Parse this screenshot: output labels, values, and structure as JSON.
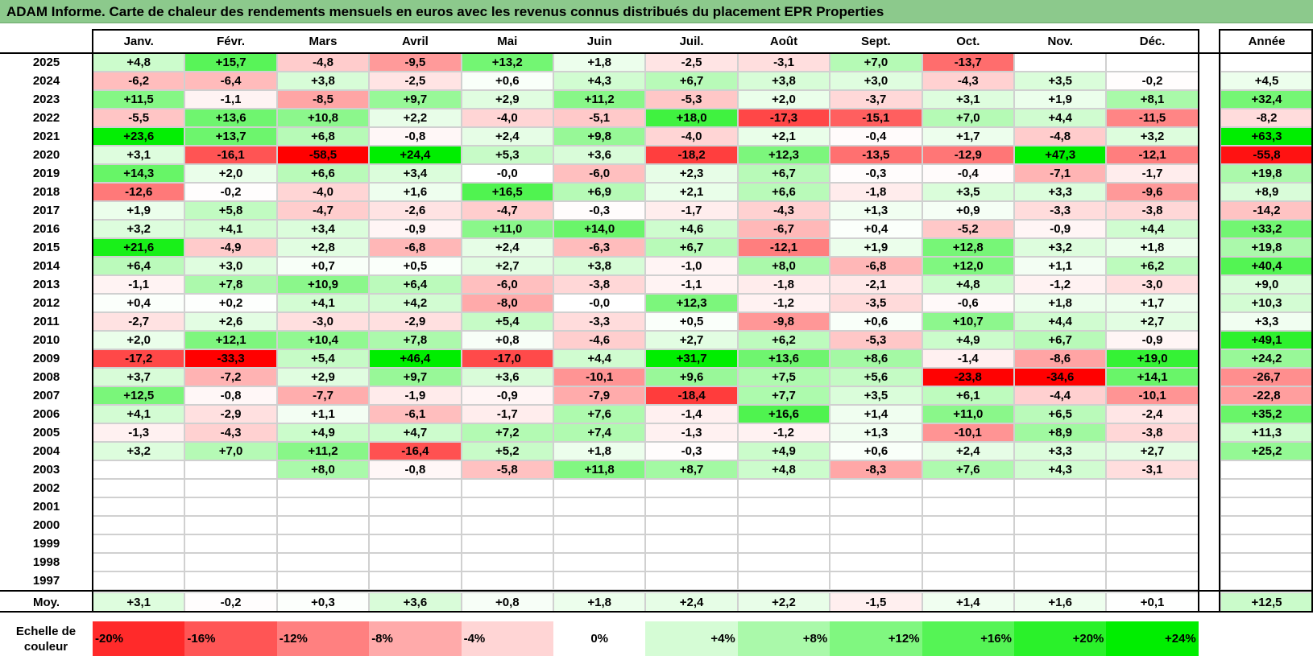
{
  "title": "ADAM Informe. Carte de chaleur des rendements mensuels en euros avec les revenus connus distribués du placement EPR Properties",
  "chart_data": {
    "type": "heatmap",
    "title": "ADAM Informe. Carte de chaleur des rendements mensuels en euros avec les revenus connus distribués du placement EPR Properties",
    "months": [
      "Janv.",
      "Févr.",
      "Mars",
      "Avril",
      "Mai",
      "Juin",
      "Juil.",
      "Août",
      "Sept.",
      "Oct.",
      "Nov.",
      "Déc."
    ],
    "year_header": "Année",
    "rows": [
      {
        "year": "2025",
        "values": [
          "+4,8",
          "+15,7",
          "-4,8",
          "-9,5",
          "+13,2",
          "+1,8",
          "-2,5",
          "-3,1",
          "+7,0",
          "-13,7",
          "",
          ""
        ],
        "annual": ""
      },
      {
        "year": "2024",
        "values": [
          "-6,2",
          "-6,4",
          "+3,8",
          "-2,5",
          "+0,6",
          "+4,3",
          "+6,7",
          "+3,8",
          "+3,0",
          "-4,3",
          "+3,5",
          "-0,2"
        ],
        "annual": "+4,5"
      },
      {
        "year": "2023",
        "values": [
          "+11,5",
          "-1,1",
          "-8,5",
          "+9,7",
          "+2,9",
          "+11,2",
          "-5,3",
          "+2,0",
          "-3,7",
          "+3,1",
          "+1,9",
          "+8,1"
        ],
        "annual": "+32,4"
      },
      {
        "year": "2022",
        "values": [
          "-5,5",
          "+13,6",
          "+10,8",
          "+2,2",
          "-4,0",
          "-5,1",
          "+18,0",
          "-17,3",
          "-15,1",
          "+7,0",
          "+4,4",
          "-11,5"
        ],
        "annual": "-8,2"
      },
      {
        "year": "2021",
        "values": [
          "+23,6",
          "+13,7",
          "+6,8",
          "-0,8",
          "+2,4",
          "+9,8",
          "-4,0",
          "+2,1",
          "-0,4",
          "+1,7",
          "-4,8",
          "+3,2"
        ],
        "annual": "+63,3"
      },
      {
        "year": "2020",
        "values": [
          "+3,1",
          "-16,1",
          "-58,5",
          "+24,4",
          "+5,3",
          "+3,6",
          "-18,2",
          "+12,3",
          "-13,5",
          "-12,9",
          "+47,3",
          "-12,1"
        ],
        "annual": "-55,8"
      },
      {
        "year": "2019",
        "values": [
          "+14,3",
          "+2,0",
          "+6,6",
          "+3,4",
          "-0,0",
          "-6,0",
          "+2,3",
          "+6,7",
          "-0,3",
          "-0,4",
          "-7,1",
          "-1,7"
        ],
        "annual": "+19,8"
      },
      {
        "year": "2018",
        "values": [
          "-12,6",
          "-0,2",
          "-4,0",
          "+1,6",
          "+16,5",
          "+6,9",
          "+2,1",
          "+6,6",
          "-1,8",
          "+3,5",
          "+3,3",
          "-9,6"
        ],
        "annual": "+8,9"
      },
      {
        "year": "2017",
        "values": [
          "+1,9",
          "+5,8",
          "-4,7",
          "-2,6",
          "-4,7",
          "-0,3",
          "-1,7",
          "-4,3",
          "+1,3",
          "+0,9",
          "-3,3",
          "-3,8"
        ],
        "annual": "-14,2"
      },
      {
        "year": "2016",
        "values": [
          "+3,2",
          "+4,1",
          "+3,4",
          "-0,9",
          "+11,0",
          "+14,0",
          "+4,6",
          "-6,7",
          "+0,4",
          "-5,2",
          "-0,9",
          "+4,4"
        ],
        "annual": "+33,2"
      },
      {
        "year": "2015",
        "values": [
          "+21,6",
          "-4,9",
          "+2,8",
          "-6,8",
          "+2,4",
          "-6,3",
          "+6,7",
          "-12,1",
          "+1,9",
          "+12,8",
          "+3,2",
          "+1,8"
        ],
        "annual": "+19,8"
      },
      {
        "year": "2014",
        "values": [
          "+6,4",
          "+3,0",
          "+0,7",
          "+0,5",
          "+2,7",
          "+3,8",
          "-1,0",
          "+8,0",
          "-6,8",
          "+12,0",
          "+1,1",
          "+6,2"
        ],
        "annual": "+40,4"
      },
      {
        "year": "2013",
        "values": [
          "-1,1",
          "+7,8",
          "+10,9",
          "+6,4",
          "-6,0",
          "-3,8",
          "-1,1",
          "-1,8",
          "-2,1",
          "+4,8",
          "-1,2",
          "-3,0"
        ],
        "annual": "+9,0"
      },
      {
        "year": "2012",
        "values": [
          "+0,4",
          "+0,2",
          "+4,1",
          "+4,2",
          "-8,0",
          "-0,0",
          "+12,3",
          "-1,2",
          "-3,5",
          "-0,6",
          "+1,8",
          "+1,7"
        ],
        "annual": "+10,3"
      },
      {
        "year": "2011",
        "values": [
          "-2,7",
          "+2,6",
          "-3,0",
          "-2,9",
          "+5,4",
          "-3,3",
          "+0,5",
          "-9,8",
          "+0,6",
          "+10,7",
          "+4,4",
          "+2,7"
        ],
        "annual": "+3,3"
      },
      {
        "year": "2010",
        "values": [
          "+2,0",
          "+12,1",
          "+10,4",
          "+7,8",
          "+0,8",
          "-4,6",
          "+2,7",
          "+6,2",
          "-5,3",
          "+4,9",
          "+6,7",
          "-0,9"
        ],
        "annual": "+49,1"
      },
      {
        "year": "2009",
        "values": [
          "-17,2",
          "-33,3",
          "+5,4",
          "+46,4",
          "-17,0",
          "+4,4",
          "+31,7",
          "+13,6",
          "+8,6",
          "-1,4",
          "-8,6",
          "+19,0"
        ],
        "annual": "+24,2"
      },
      {
        "year": "2008",
        "values": [
          "+3,7",
          "-7,2",
          "+2,9",
          "+9,7",
          "+3,6",
          "-10,1",
          "+9,6",
          "+7,5",
          "+5,6",
          "-23,8",
          "-34,6",
          "+14,1"
        ],
        "annual": "-26,7"
      },
      {
        "year": "2007",
        "values": [
          "+12,5",
          "-0,8",
          "-7,7",
          "-1,9",
          "-0,9",
          "-7,9",
          "-18,4",
          "+7,7",
          "+3,5",
          "+6,1",
          "-4,4",
          "-10,1"
        ],
        "annual": "-22,8"
      },
      {
        "year": "2006",
        "values": [
          "+4,1",
          "-2,9",
          "+1,1",
          "-6,1",
          "-1,7",
          "+7,6",
          "-1,4",
          "+16,6",
          "+1,4",
          "+11,0",
          "+6,5",
          "-2,4"
        ],
        "annual": "+35,2"
      },
      {
        "year": "2005",
        "values": [
          "-1,3",
          "-4,3",
          "+4,9",
          "+4,7",
          "+7,2",
          "+7,4",
          "-1,3",
          "-1,2",
          "+1,3",
          "-10,1",
          "+8,9",
          "-3,8"
        ],
        "annual": "+11,3"
      },
      {
        "year": "2004",
        "values": [
          "+3,2",
          "+7,0",
          "+11,2",
          "-16,4",
          "+5,2",
          "+1,8",
          "-0,3",
          "+4,9",
          "+0,6",
          "+2,4",
          "+3,3",
          "+2,7"
        ],
        "annual": "+25,2"
      },
      {
        "year": "2003",
        "values": [
          "",
          "",
          "+8,0",
          "-0,8",
          "-5,8",
          "+11,8",
          "+8,7",
          "+4,8",
          "-8,3",
          "+7,6",
          "+4,3",
          "-3,1"
        ],
        "annual": ""
      },
      {
        "year": "2002",
        "values": [
          "",
          "",
          "",
          "",
          "",
          "",
          "",
          "",
          "",
          "",
          "",
          ""
        ],
        "annual": ""
      },
      {
        "year": "2001",
        "values": [
          "",
          "",
          "",
          "",
          "",
          "",
          "",
          "",
          "",
          "",
          "",
          ""
        ],
        "annual": ""
      },
      {
        "year": "2000",
        "values": [
          "",
          "",
          "",
          "",
          "",
          "",
          "",
          "",
          "",
          "",
          "",
          ""
        ],
        "annual": ""
      },
      {
        "year": "1999",
        "values": [
          "",
          "",
          "",
          "",
          "",
          "",
          "",
          "",
          "",
          "",
          "",
          ""
        ],
        "annual": ""
      },
      {
        "year": "1998",
        "values": [
          "",
          "",
          "",
          "",
          "",
          "",
          "",
          "",
          "",
          "",
          "",
          ""
        ],
        "annual": ""
      },
      {
        "year": "1997",
        "values": [
          "",
          "",
          "",
          "",
          "",
          "",
          "",
          "",
          "",
          "",
          "",
          ""
        ],
        "annual": ""
      }
    ],
    "average": {
      "label": "Moy.",
      "values": [
        "+3,1",
        "-0,2",
        "+0,3",
        "+3,6",
        "+0,8",
        "+1,8",
        "+2,4",
        "+2,2",
        "-1,5",
        "+1,4",
        "+1,6",
        "+0,1"
      ],
      "annual": "+12,5"
    },
    "color_scale": {
      "label_line1": "Echelle de",
      "label_line2": "couleur",
      "steps": [
        "-20%",
        "-16%",
        "-12%",
        "-8%",
        "-4%",
        "0%",
        "+4%",
        "+8%",
        "+12%",
        "+16%",
        "+20%",
        "+24%"
      ]
    },
    "colors": {
      "negative_max": "#ff0000",
      "neutral": "#ffffff",
      "positive_max": "#00ee00"
    }
  }
}
